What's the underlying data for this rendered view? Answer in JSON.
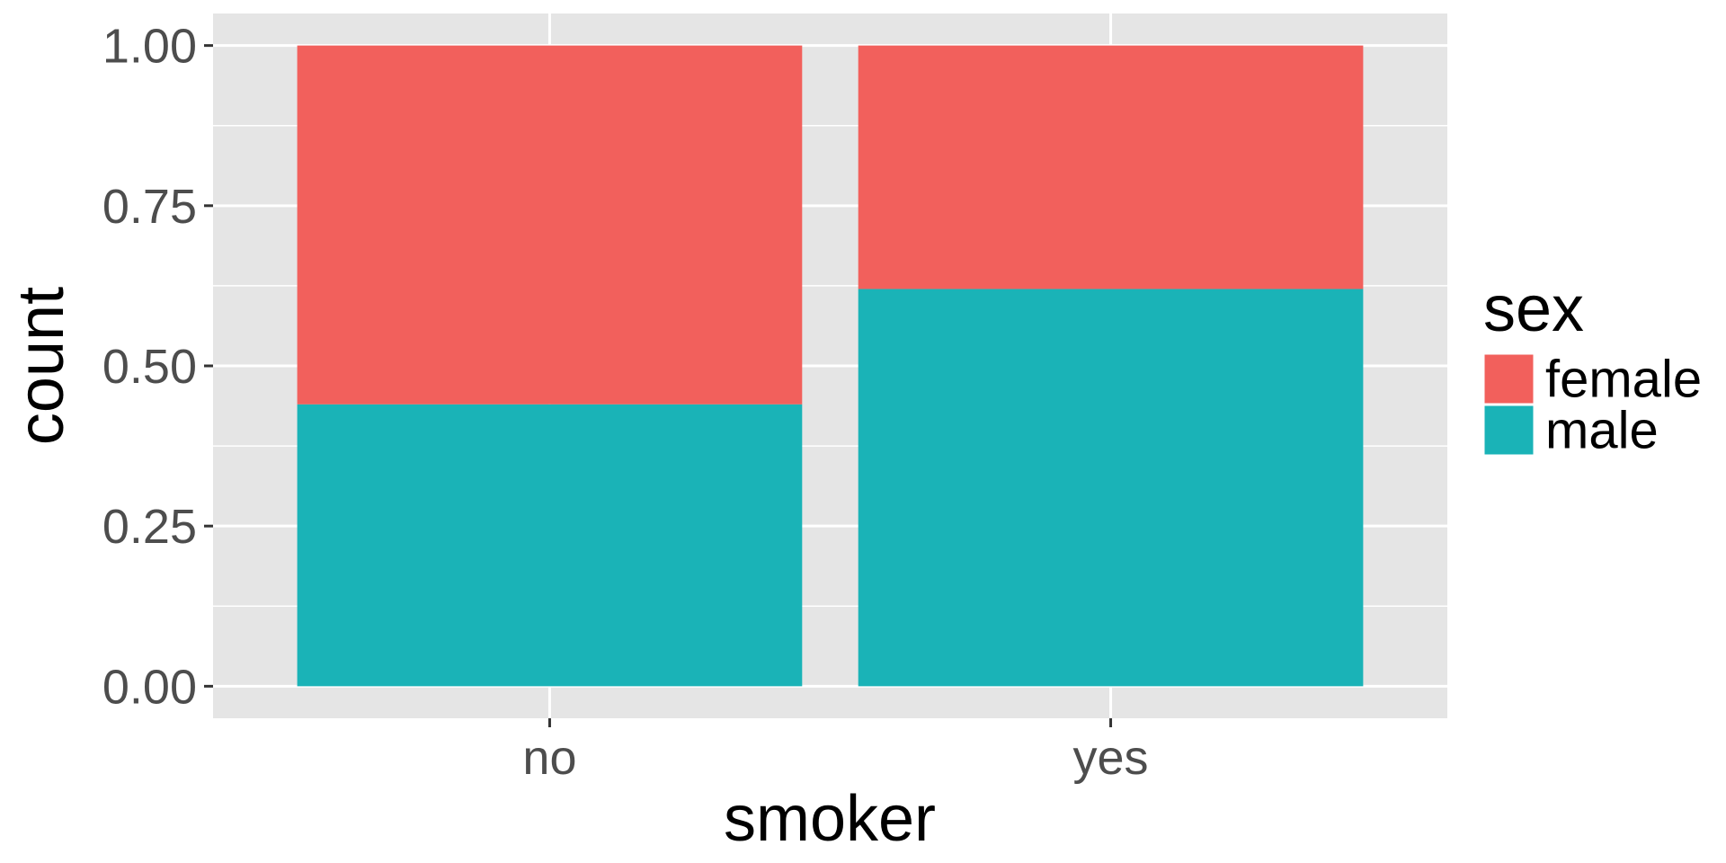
{
  "chart_data": {
    "type": "bar",
    "stacked": true,
    "categories": [
      "no",
      "yes"
    ],
    "series": [
      {
        "name": "female",
        "values": [
          0.56,
          0.38
        ],
        "color": "#F2605C"
      },
      {
        "name": "male",
        "values": [
          0.44,
          0.62
        ],
        "color": "#1AB3B7"
      }
    ],
    "xlabel": "smoker",
    "ylabel": "count",
    "ylim": [
      -0.05,
      1.05
    ],
    "yticks": [
      0.0,
      0.25,
      0.5,
      0.75,
      1.0
    ],
    "ytick_labels": [
      "0.00",
      "0.25",
      "0.50",
      "0.75",
      "1.00"
    ],
    "legend": {
      "title": "sex",
      "position": "right",
      "items": [
        "female",
        "male"
      ]
    },
    "grid": true,
    "panel_background": "#E5E5E5",
    "grid_color": "#FFFFFF"
  }
}
